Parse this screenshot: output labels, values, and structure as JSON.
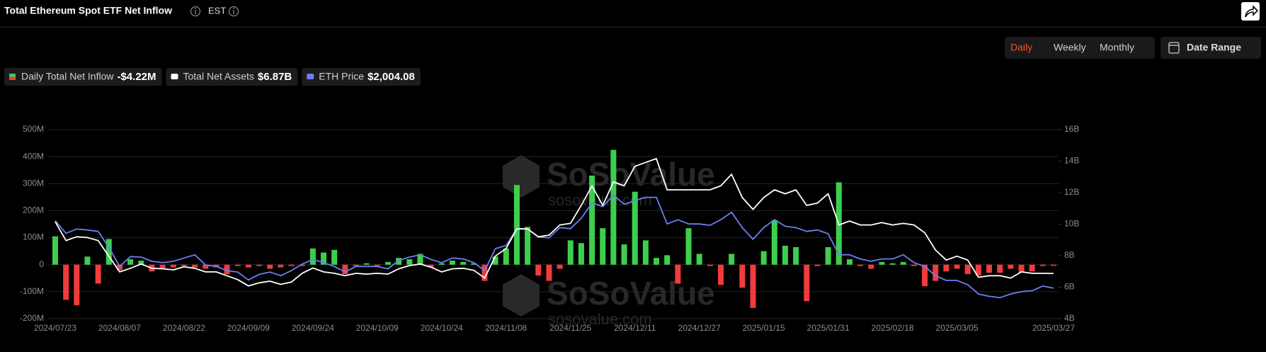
{
  "header": {
    "title": "Total Ethereum Spot ETF Net Inflow",
    "timezone": "EST"
  },
  "controls": {
    "periods": [
      "Daily",
      "Weekly",
      "Monthly"
    ],
    "active_period": 0,
    "date_range": "Date Range"
  },
  "watermark": [
    "SoSoValue",
    "sosovalue.com"
  ],
  "chart_data": {
    "type": "bar",
    "categories": [
      "2024/07/23",
      null,
      null,
      null,
      null,
      null,
      "2024/08/07",
      null,
      null,
      null,
      null,
      null,
      "2024/08/22",
      null,
      null,
      null,
      null,
      null,
      "2024/09/09",
      null,
      null,
      null,
      null,
      null,
      "2024/09/24",
      null,
      null,
      null,
      null,
      null,
      "2024/10/09",
      null,
      null,
      null,
      null,
      null,
      "2024/10/24",
      null,
      null,
      null,
      null,
      null,
      "2024/11/08",
      null,
      null,
      null,
      null,
      null,
      "2024/11/25",
      null,
      null,
      null,
      null,
      null,
      "2024/12/11",
      null,
      null,
      null,
      null,
      null,
      "2024/12/27",
      null,
      null,
      null,
      null,
      null,
      "2025/01/15",
      null,
      null,
      null,
      null,
      null,
      "2025/01/31",
      null,
      null,
      null,
      null,
      null,
      "2025/02/18",
      null,
      null,
      null,
      null,
      null,
      "2025/03/05",
      null,
      null,
      null,
      null,
      null,
      null,
      null,
      null,
      "2025/03/27"
    ],
    "series": [
      {
        "name": "Daily Total Net Inflow",
        "type": "bar",
        "current_label": "-$4.22M",
        "color": "#3ccf4e",
        "negative_color": "#f23b3b",
        "values": [
          105,
          -130,
          -150,
          30,
          -70,
          95,
          -20,
          20,
          15,
          -25,
          -15,
          -10,
          -5,
          -10,
          -15,
          -10,
          -35,
          -5,
          -10,
          -5,
          -15,
          -10,
          -5,
          -5,
          60,
          45,
          55,
          -35,
          -5,
          5,
          -5,
          10,
          25,
          20,
          40,
          -10,
          5,
          15,
          10,
          5,
          -60,
          30,
          60,
          295,
          140,
          -40,
          -60,
          -15,
          90,
          80,
          330,
          135,
          425,
          75,
          270,
          90,
          25,
          35,
          -70,
          135,
          40,
          -5,
          -75,
          40,
          -85,
          -160,
          50,
          165,
          70,
          65,
          -135,
          -5,
          65,
          305,
          20,
          -5,
          -15,
          10,
          5,
          10,
          -5,
          -80,
          -60,
          -25,
          -15,
          -35,
          -40,
          -30,
          -30,
          -15,
          -30,
          -25,
          -5,
          -4.22
        ]
      },
      {
        "name": "Total Net Assets",
        "type": "line",
        "axis": "y2",
        "current_label": "$6.87B",
        "color": "#ffffff",
        "values": [
          10.15,
          8.96,
          9.2,
          9.15,
          8.96,
          7.97,
          6.97,
          7.2,
          7.47,
          7.2,
          7.17,
          7.1,
          7.3,
          7.2,
          6.97,
          6.97,
          6.73,
          6.48,
          6.08,
          6.28,
          6.38,
          6.18,
          6.33,
          6.88,
          7.22,
          6.97,
          6.88,
          6.73,
          6.88,
          6.83,
          6.88,
          6.83,
          7.17,
          7.37,
          7.47,
          7.27,
          6.97,
          7.17,
          7.2,
          7.07,
          6.58,
          7.97,
          8.46,
          9.7,
          9.7,
          9.2,
          9.3,
          9.95,
          10.05,
          11.19,
          12.43,
          11.19,
          12.68,
          12.43,
          13.67,
          13.92,
          14.16,
          12.18,
          12.18,
          12.18,
          12.18,
          12.18,
          12.43,
          13.17,
          11.69,
          10.94,
          11.69,
          12.18,
          11.93,
          12.18,
          11.19,
          11.34,
          11.93,
          9.95,
          10.2,
          9.95,
          9.95,
          10.1,
          9.95,
          10.05,
          9.95,
          9.45,
          8.36,
          7.72,
          7.97,
          7.72,
          6.63,
          6.73,
          6.73,
          6.58,
          6.97,
          6.88,
          6.88,
          6.87
        ]
      },
      {
        "name": "ETH Price",
        "type": "line",
        "axis": "y3",
        "current_label": "$2,004.08",
        "color": "#6b7ff2",
        "values": [
          3450,
          3180,
          3270,
          3250,
          3220,
          2880,
          2470,
          2680,
          2670,
          2580,
          2550,
          2580,
          2650,
          2720,
          2500,
          2470,
          2380,
          2350,
          2180,
          2300,
          2350,
          2270,
          2380,
          2520,
          2620,
          2550,
          2470,
          2350,
          2470,
          2470,
          2470,
          2420,
          2600,
          2670,
          2720,
          2620,
          2550,
          2650,
          2630,
          2550,
          2380,
          2850,
          2920,
          3280,
          3270,
          3100,
          3080,
          3300,
          3280,
          3500,
          3830,
          3750,
          4000,
          3800,
          3880,
          3950,
          3950,
          3380,
          3470,
          3380,
          3380,
          3350,
          3470,
          3630,
          3300,
          3050,
          3300,
          3470,
          3330,
          3300,
          3220,
          3250,
          3170,
          2720,
          2720,
          2630,
          2580,
          2630,
          2630,
          2720,
          2550,
          2470,
          2270,
          2170,
          2170,
          2080,
          1880,
          1830,
          1800,
          1880,
          1930,
          1950,
          2050,
          2004.08
        ]
      }
    ],
    "ylim": [
      -200,
      500
    ],
    "yticks": [
      {
        "value": 500,
        "label": "500M"
      },
      {
        "value": 400,
        "label": "400M"
      },
      {
        "value": 300,
        "label": "300M"
      },
      {
        "value": 200,
        "label": "200M"
      },
      {
        "value": 100,
        "label": "100M"
      },
      0,
      {
        "value": -100,
        "label": "-100M"
      },
      {
        "value": -200,
        "label": "-200M"
      }
    ],
    "y2lim": [
      4,
      16
    ],
    "y2ticks": [
      {
        "value": 16,
        "label": "16B"
      },
      {
        "value": 14,
        "label": "14B"
      },
      {
        "value": 12,
        "label": "12B"
      },
      {
        "value": 10,
        "label": "10B"
      },
      {
        "value": 8,
        "label": "8B"
      },
      {
        "value": 6,
        "label": "6B"
      },
      {
        "value": 4,
        "label": "4B"
      }
    ],
    "y3lim": [
      1350,
      5400
    ],
    "grid": true
  }
}
